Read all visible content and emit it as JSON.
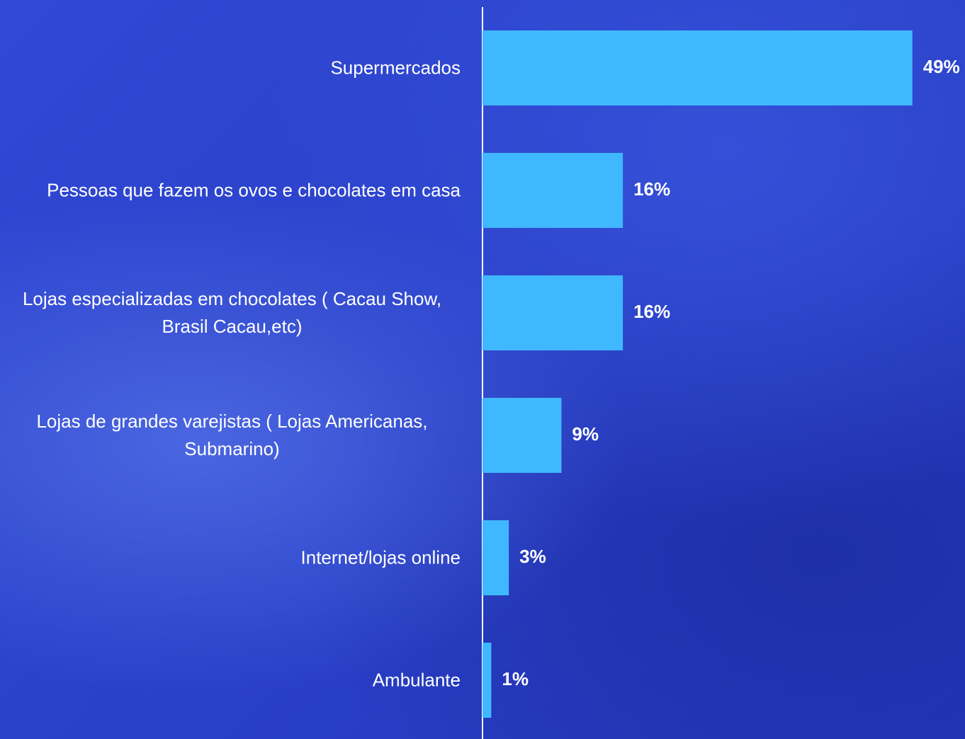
{
  "chart_data": {
    "type": "barh",
    "categories": [
      "Supermercados",
      "Pessoas que fazem os ovos e chocolates em casa",
      "Lojas especializadas em chocolates ( Cacau Show, Brasil Cacau,etc)",
      "Lojas de grandes varejistas ( Lojas Americanas, Submarino)",
      "Internet/lojas online",
      "Ambulante"
    ],
    "values": [
      49,
      16,
      16,
      9,
      3,
      1
    ],
    "value_labels": [
      "49%",
      "16%",
      "16%",
      "9%",
      "3%",
      "1%"
    ],
    "color": "#40b8ff",
    "xlim": [
      0,
      55
    ]
  }
}
